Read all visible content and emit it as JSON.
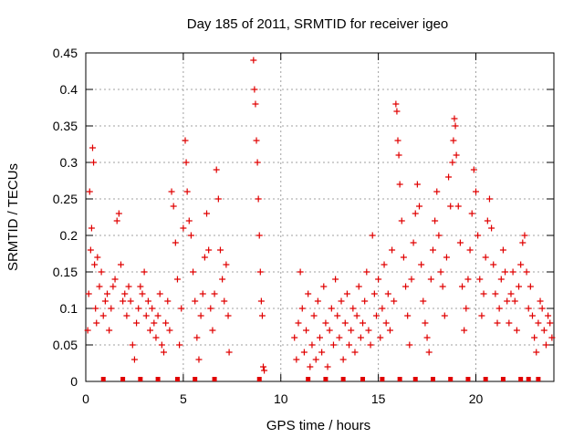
{
  "chart_data": {
    "type": "scatter",
    "title": "Day 185 of 2011, SRMTID for receiver igeo",
    "xlabel": "GPS time / hours",
    "ylabel": "SRMTID / TECUs",
    "xlim": [
      0,
      24
    ],
    "ylim": [
      0,
      0.45
    ],
    "xticks": [
      0,
      5,
      10,
      15,
      20
    ],
    "yticks": [
      0,
      0.05,
      0.1,
      0.15,
      0.2,
      0.25,
      0.3,
      0.35,
      0.4,
      0.45
    ],
    "grid": true,
    "marker": "+",
    "color": "#e00000",
    "gap_hours": [
      7.5,
      10.6
    ],
    "zero_markers_hours": [
      0.9,
      1.9,
      2.8,
      3.7,
      4.7,
      5.6,
      6.6,
      8.9,
      11.4,
      12.3,
      13.2,
      14.2,
      15.2,
      16.1,
      16.9,
      17.8,
      18.7,
      19.6,
      20.5,
      21.4,
      22.3,
      22.7,
      23.2
    ],
    "points": [
      [
        0.1,
        0.07
      ],
      [
        0.15,
        0.12
      ],
      [
        0.2,
        0.26
      ],
      [
        0.25,
        0.18
      ],
      [
        0.3,
        0.21
      ],
      [
        0.35,
        0.32
      ],
      [
        0.4,
        0.3
      ],
      [
        0.45,
        0.16
      ],
      [
        0.5,
        0.1
      ],
      [
        0.55,
        0.08
      ],
      [
        0.6,
        0.17
      ],
      [
        0.7,
        0.13
      ],
      [
        0.8,
        0.15
      ],
      [
        0.9,
        0.09
      ],
      [
        1.0,
        0.11
      ],
      [
        1.1,
        0.12
      ],
      [
        1.2,
        0.07
      ],
      [
        1.3,
        0.1
      ],
      [
        1.4,
        0.13
      ],
      [
        1.5,
        0.14
      ],
      [
        1.6,
        0.22
      ],
      [
        1.7,
        0.23
      ],
      [
        1.8,
        0.16
      ],
      [
        1.9,
        0.11
      ],
      [
        2.0,
        0.12
      ],
      [
        2.1,
        0.09
      ],
      [
        2.2,
        0.13
      ],
      [
        2.3,
        0.11
      ],
      [
        2.4,
        0.05
      ],
      [
        2.5,
        0.03
      ],
      [
        2.6,
        0.08
      ],
      [
        2.7,
        0.1
      ],
      [
        2.8,
        0.13
      ],
      [
        2.9,
        0.12
      ],
      [
        3.0,
        0.15
      ],
      [
        3.1,
        0.09
      ],
      [
        3.2,
        0.11
      ],
      [
        3.3,
        0.07
      ],
      [
        3.4,
        0.1
      ],
      [
        3.5,
        0.08
      ],
      [
        3.6,
        0.06
      ],
      [
        3.7,
        0.09
      ],
      [
        3.8,
        0.12
      ],
      [
        3.9,
        0.05
      ],
      [
        4.0,
        0.04
      ],
      [
        4.1,
        0.08
      ],
      [
        4.2,
        0.11
      ],
      [
        4.3,
        0.07
      ],
      [
        4.4,
        0.26
      ],
      [
        4.5,
        0.24
      ],
      [
        4.6,
        0.19
      ],
      [
        4.7,
        0.14
      ],
      [
        4.8,
        0.05
      ],
      [
        4.9,
        0.1
      ],
      [
        5.0,
        0.21
      ],
      [
        5.1,
        0.33
      ],
      [
        5.15,
        0.3
      ],
      [
        5.2,
        0.26
      ],
      [
        5.3,
        0.22
      ],
      [
        5.4,
        0.2
      ],
      [
        5.5,
        0.15
      ],
      [
        5.6,
        0.11
      ],
      [
        5.7,
        0.06
      ],
      [
        5.8,
        0.03
      ],
      [
        5.9,
        0.09
      ],
      [
        6.0,
        0.12
      ],
      [
        6.1,
        0.17
      ],
      [
        6.2,
        0.23
      ],
      [
        6.3,
        0.18
      ],
      [
        6.4,
        0.1
      ],
      [
        6.5,
        0.07
      ],
      [
        6.6,
        0.12
      ],
      [
        6.7,
        0.29
      ],
      [
        6.8,
        0.25
      ],
      [
        6.9,
        0.18
      ],
      [
        7.0,
        0.14
      ],
      [
        7.1,
        0.11
      ],
      [
        7.2,
        0.16
      ],
      [
        7.3,
        0.09
      ],
      [
        7.35,
        0.04
      ],
      [
        8.6,
        0.44
      ],
      [
        8.65,
        0.4
      ],
      [
        8.7,
        0.38
      ],
      [
        8.75,
        0.33
      ],
      [
        8.8,
        0.3
      ],
      [
        8.85,
        0.25
      ],
      [
        8.9,
        0.2
      ],
      [
        8.95,
        0.15
      ],
      [
        9.0,
        0.11
      ],
      [
        9.05,
        0.09
      ],
      [
        9.1,
        0.02
      ],
      [
        9.15,
        0.015
      ],
      [
        10.7,
        0.06
      ],
      [
        10.8,
        0.03
      ],
      [
        10.9,
        0.08
      ],
      [
        11.0,
        0.15
      ],
      [
        11.1,
        0.1
      ],
      [
        11.2,
        0.04
      ],
      [
        11.3,
        0.07
      ],
      [
        11.4,
        0.12
      ],
      [
        11.5,
        0.02
      ],
      [
        11.6,
        0.05
      ],
      [
        11.7,
        0.09
      ],
      [
        11.8,
        0.03
      ],
      [
        11.9,
        0.11
      ],
      [
        12.0,
        0.06
      ],
      [
        12.1,
        0.04
      ],
      [
        12.2,
        0.13
      ],
      [
        12.3,
        0.08
      ],
      [
        12.4,
        0.02
      ],
      [
        12.5,
        0.07
      ],
      [
        12.6,
        0.1
      ],
      [
        12.7,
        0.05
      ],
      [
        12.8,
        0.14
      ],
      [
        12.9,
        0.09
      ],
      [
        13.0,
        0.06
      ],
      [
        13.1,
        0.11
      ],
      [
        13.2,
        0.03
      ],
      [
        13.3,
        0.08
      ],
      [
        13.4,
        0.12
      ],
      [
        13.5,
        0.05
      ],
      [
        13.6,
        0.07
      ],
      [
        13.7,
        0.1
      ],
      [
        13.8,
        0.04
      ],
      [
        13.9,
        0.09
      ],
      [
        14.0,
        0.13
      ],
      [
        14.1,
        0.06
      ],
      [
        14.2,
        0.08
      ],
      [
        14.3,
        0.11
      ],
      [
        14.4,
        0.15
      ],
      [
        14.5,
        0.07
      ],
      [
        14.6,
        0.05
      ],
      [
        14.7,
        0.2
      ],
      [
        14.8,
        0.12
      ],
      [
        14.9,
        0.09
      ],
      [
        15.0,
        0.14
      ],
      [
        15.1,
        0.06
      ],
      [
        15.2,
        0.1
      ],
      [
        15.3,
        0.16
      ],
      [
        15.4,
        0.08
      ],
      [
        15.5,
        0.12
      ],
      [
        15.6,
        0.07
      ],
      [
        15.7,
        0.18
      ],
      [
        15.8,
        0.11
      ],
      [
        15.9,
        0.38
      ],
      [
        15.95,
        0.37
      ],
      [
        16.0,
        0.33
      ],
      [
        16.05,
        0.31
      ],
      [
        16.1,
        0.27
      ],
      [
        16.2,
        0.22
      ],
      [
        16.3,
        0.17
      ],
      [
        16.4,
        0.13
      ],
      [
        16.5,
        0.09
      ],
      [
        16.6,
        0.05
      ],
      [
        16.7,
        0.14
      ],
      [
        16.8,
        0.19
      ],
      [
        16.9,
        0.23
      ],
      [
        17.0,
        0.27
      ],
      [
        17.1,
        0.24
      ],
      [
        17.2,
        0.16
      ],
      [
        17.3,
        0.11
      ],
      [
        17.4,
        0.08
      ],
      [
        17.5,
        0.06
      ],
      [
        17.6,
        0.04
      ],
      [
        17.7,
        0.14
      ],
      [
        17.8,
        0.18
      ],
      [
        17.9,
        0.22
      ],
      [
        18.0,
        0.26
      ],
      [
        18.1,
        0.2
      ],
      [
        18.2,
        0.15
      ],
      [
        18.3,
        0.13
      ],
      [
        18.4,
        0.09
      ],
      [
        18.5,
        0.17
      ],
      [
        18.6,
        0.28
      ],
      [
        18.7,
        0.24
      ],
      [
        18.8,
        0.3
      ],
      [
        18.85,
        0.33
      ],
      [
        18.9,
        0.36
      ],
      [
        18.95,
        0.35
      ],
      [
        19.0,
        0.31
      ],
      [
        19.1,
        0.24
      ],
      [
        19.2,
        0.19
      ],
      [
        19.3,
        0.13
      ],
      [
        19.4,
        0.07
      ],
      [
        19.5,
        0.1
      ],
      [
        19.6,
        0.14
      ],
      [
        19.7,
        0.18
      ],
      [
        19.8,
        0.23
      ],
      [
        19.9,
        0.29
      ],
      [
        20.0,
        0.26
      ],
      [
        20.1,
        0.2
      ],
      [
        20.2,
        0.14
      ],
      [
        20.3,
        0.09
      ],
      [
        20.4,
        0.12
      ],
      [
        20.5,
        0.17
      ],
      [
        20.6,
        0.22
      ],
      [
        20.7,
        0.25
      ],
      [
        20.8,
        0.21
      ],
      [
        20.9,
        0.16
      ],
      [
        21.0,
        0.12
      ],
      [
        21.1,
        0.08
      ],
      [
        21.2,
        0.1
      ],
      [
        21.3,
        0.14
      ],
      [
        21.4,
        0.18
      ],
      [
        21.5,
        0.15
      ],
      [
        21.6,
        0.11
      ],
      [
        21.7,
        0.08
      ],
      [
        21.8,
        0.12
      ],
      [
        21.9,
        0.15
      ],
      [
        22.0,
        0.11
      ],
      [
        22.1,
        0.07
      ],
      [
        22.2,
        0.13
      ],
      [
        22.3,
        0.16
      ],
      [
        22.4,
        0.19
      ],
      [
        22.5,
        0.2
      ],
      [
        22.6,
        0.15
      ],
      [
        22.7,
        0.1
      ],
      [
        22.8,
        0.13
      ],
      [
        22.9,
        0.09
      ],
      [
        23.0,
        0.06
      ],
      [
        23.1,
        0.04
      ],
      [
        23.2,
        0.08
      ],
      [
        23.3,
        0.11
      ],
      [
        23.4,
        0.1
      ],
      [
        23.5,
        0.07
      ],
      [
        23.6,
        0.05
      ],
      [
        23.7,
        0.09
      ],
      [
        23.8,
        0.08
      ],
      [
        23.9,
        0.06
      ]
    ]
  }
}
